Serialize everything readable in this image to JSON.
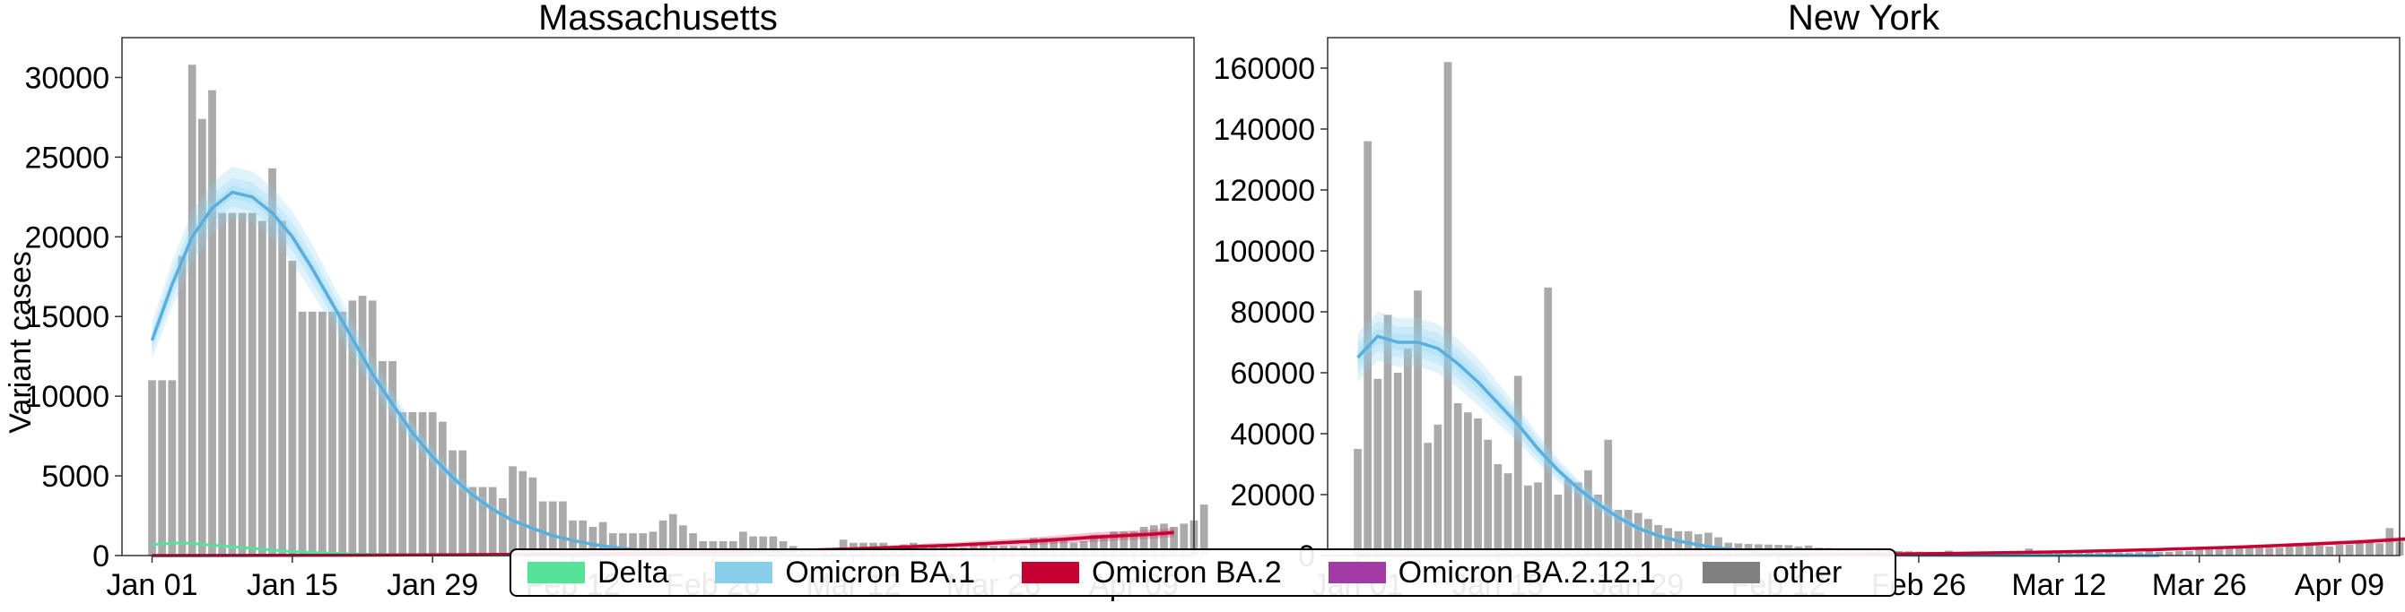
{
  "figure": {
    "ylabel": "Variant cases",
    "legend": [
      {
        "name": "Delta",
        "color": "#55e39a"
      },
      {
        "name": "Omicron BA.1",
        "color": "#87ceeb"
      },
      {
        "name": "Omicron BA.2",
        "color": "#c70033"
      },
      {
        "name": "Omicron BA.2.12.1",
        "color": "#a33ba6"
      },
      {
        "name": "other",
        "color": "#808080"
      }
    ]
  },
  "chart_data": [
    {
      "type": "bar",
      "title": "Massachusetts",
      "ylabel": "Variant cases",
      "xlabel": "",
      "x_start": "2022-01-01",
      "xlim_days": [
        -3,
        104
      ],
      "xticks": [
        {
          "day": 0,
          "label": "Jan 01"
        },
        {
          "day": 14,
          "label": "Jan 15"
        },
        {
          "day": 28,
          "label": "Jan 29"
        },
        {
          "day": 42,
          "label": "Feb 12"
        },
        {
          "day": 56,
          "label": "Feb 26"
        },
        {
          "day": 70,
          "label": "Mar 12"
        },
        {
          "day": 84,
          "label": "Mar 26"
        },
        {
          "day": 98,
          "label": "Apr 09"
        }
      ],
      "ylim": [
        0,
        32500
      ],
      "yticks": [
        0,
        5000,
        10000,
        15000,
        20000,
        25000,
        30000
      ],
      "grid": false,
      "legend_placement": "bottom-center",
      "bars_other": [
        11000,
        11000,
        11000,
        18800,
        30800,
        27400,
        29200,
        21500,
        21500,
        21500,
        21500,
        21000,
        24300,
        21000,
        18500,
        15300,
        15300,
        15300,
        15300,
        15300,
        16000,
        16300,
        16000,
        12200,
        12200,
        9000,
        9000,
        9000,
        9000,
        8400,
        6600,
        6600,
        4300,
        4300,
        4300,
        3600,
        5600,
        5300,
        4900,
        3400,
        3400,
        3400,
        2200,
        2200,
        1800,
        2100,
        1400,
        1400,
        1400,
        1400,
        1500,
        2200,
        2600,
        1900,
        1400,
        900,
        900,
        900,
        900,
        1500,
        1200,
        1200,
        1200,
        900,
        600,
        400,
        400,
        400,
        400,
        1000,
        800,
        800,
        800,
        800,
        500,
        700,
        800,
        700,
        600,
        600,
        500,
        500,
        800,
        800,
        600,
        600,
        600,
        600,
        1100,
        1100,
        1100,
        1100,
        800,
        900,
        1300,
        1300,
        1500,
        1500,
        1500,
        1800,
        1900,
        2000,
        1800,
        2000,
        2200,
        3200
      ],
      "series": [
        {
          "name": "Omicron BA.1",
          "type": "line",
          "color": "#5aaede",
          "points": [
            [
              0,
              13500
            ],
            [
              2,
              17000
            ],
            [
              4,
              20000
            ],
            [
              6,
              21800
            ],
            [
              8,
              22800
            ],
            [
              10,
              22500
            ],
            [
              12,
              21500
            ],
            [
              14,
              20000
            ],
            [
              16,
              18000
            ],
            [
              18,
              15800
            ],
            [
              20,
              13600
            ],
            [
              22,
              11400
            ],
            [
              24,
              9500
            ],
            [
              26,
              7700
            ],
            [
              28,
              6200
            ],
            [
              30,
              4900
            ],
            [
              32,
              3800
            ],
            [
              34,
              2900
            ],
            [
              36,
              2200
            ],
            [
              38,
              1700
            ],
            [
              40,
              1250
            ],
            [
              42,
              950
            ],
            [
              44,
              700
            ],
            [
              46,
              520
            ],
            [
              48,
              390
            ],
            [
              50,
              280
            ],
            [
              53,
              170
            ],
            [
              56,
              100
            ],
            [
              60,
              50
            ],
            [
              65,
              20
            ],
            [
              70,
              8
            ],
            [
              75,
              3
            ]
          ],
          "band_halfwidths": [
            400,
            900,
            1600
          ]
        },
        {
          "name": "Delta",
          "type": "line",
          "color": "#55e39a",
          "points": [
            [
              0,
              700
            ],
            [
              3,
              800
            ],
            [
              6,
              650
            ],
            [
              10,
              450
            ],
            [
              14,
              250
            ],
            [
              20,
              100
            ],
            [
              26,
              40
            ],
            [
              34,
              10
            ],
            [
              45,
              0
            ]
          ]
        },
        {
          "name": "Omicron BA.2",
          "type": "line",
          "color": "#c70033",
          "points": [
            [
              0,
              0
            ],
            [
              20,
              20
            ],
            [
              30,
              50
            ],
            [
              40,
              90
            ],
            [
              50,
              150
            ],
            [
              60,
              250
            ],
            [
              70,
              420
            ],
            [
              80,
              650
            ],
            [
              88,
              900
            ],
            [
              94,
              1150
            ],
            [
              100,
              1350
            ],
            [
              102,
              1450
            ]
          ],
          "band_halfwidths": [
            150,
            300
          ]
        }
      ]
    },
    {
      "type": "bar",
      "title": "New York",
      "ylabel": "",
      "xlabel": "",
      "x_start": "2022-01-01",
      "xlim_days": [
        -3,
        104
      ],
      "xticks": [
        {
          "day": 0,
          "label": "Jan 01"
        },
        {
          "day": 14,
          "label": "Jan 15"
        },
        {
          "day": 28,
          "label": "Jan 29"
        },
        {
          "day": 42,
          "label": "Feb 12"
        },
        {
          "day": 56,
          "label": "Feb 26"
        },
        {
          "day": 70,
          "label": "Mar 12"
        },
        {
          "day": 84,
          "label": "Mar 26"
        },
        {
          "day": 98,
          "label": "Apr 09"
        }
      ],
      "ylim": [
        0,
        170000
      ],
      "yticks": [
        0,
        20000,
        40000,
        60000,
        80000,
        100000,
        120000,
        140000,
        160000
      ],
      "grid": false,
      "legend_placement": "bottom-center",
      "bars_other": [
        35000,
        136000,
        58000,
        79000,
        60000,
        68000,
        87000,
        37000,
        43000,
        162000,
        50000,
        47000,
        45000,
        38000,
        30000,
        27000,
        59000,
        23000,
        24000,
        88000,
        20000,
        25000,
        24000,
        28000,
        20000,
        38000,
        15000,
        15000,
        14000,
        12000,
        10000,
        9000,
        8000,
        8000,
        7000,
        7500,
        6000,
        4200,
        4000,
        3800,
        3700,
        3600,
        3500,
        3400,
        3000,
        3300,
        2600,
        2500,
        2400,
        2300,
        2100,
        2000,
        1800,
        1600,
        1500,
        1400,
        1300,
        1200,
        1100,
        1600,
        1000,
        1000,
        900,
        900,
        900,
        800,
        800,
        2300,
        1200,
        1000,
        1000,
        1000,
        900,
        1000,
        900,
        1100,
        1100,
        1000,
        1100,
        2000,
        1200,
        1200,
        1500,
        1500,
        2100,
        2000,
        2500,
        2500,
        2700,
        3000,
        2800,
        2600,
        2600,
        3500,
        4000,
        3500,
        3300,
        3000,
        3500,
        3500,
        4200,
        4500,
        4000,
        9000,
        4500,
        6500
      ],
      "series": [
        {
          "name": "Omicron BA.1",
          "type": "line",
          "color": "#5aaede",
          "points": [
            [
              0,
              65000
            ],
            [
              2,
              72000
            ],
            [
              4,
              70000
            ],
            [
              6,
              70000
            ],
            [
              8,
              68000
            ],
            [
              10,
              63000
            ],
            [
              12,
              57000
            ],
            [
              14,
              50000
            ],
            [
              16,
              43000
            ],
            [
              18,
              35000
            ],
            [
              20,
              28000
            ],
            [
              22,
              22000
            ],
            [
              24,
              17000
            ],
            [
              26,
              12500
            ],
            [
              28,
              9000
            ],
            [
              30,
              6500
            ],
            [
              32,
              4800
            ],
            [
              34,
              3500
            ],
            [
              36,
              2500
            ],
            [
              38,
              1800
            ],
            [
              40,
              1300
            ],
            [
              42,
              950
            ],
            [
              45,
              600
            ],
            [
              48,
              380
            ],
            [
              52,
              200
            ],
            [
              56,
              100
            ],
            [
              62,
              40
            ],
            [
              70,
              12
            ],
            [
              80,
              3
            ]
          ],
          "band_halfwidths": [
            2500,
            5000,
            8000
          ]
        },
        {
          "name": "Delta",
          "type": "line",
          "color": "#55e39a",
          "points": [
            [
              0,
              1500
            ],
            [
              4,
              1200
            ],
            [
              10,
              600
            ],
            [
              16,
              250
            ],
            [
              24,
              80
            ],
            [
              34,
              20
            ],
            [
              45,
              0
            ]
          ]
        },
        {
          "name": "Omicron BA.2",
          "type": "line",
          "color": "#c70033",
          "points": [
            [
              0,
              0
            ],
            [
              20,
              50
            ],
            [
              30,
              120
            ],
            [
              40,
              250
            ],
            [
              50,
              450
            ],
            [
              60,
              750
            ],
            [
              70,
              1200
            ],
            [
              80,
              2000
            ],
            [
              88,
              2800
            ],
            [
              94,
              3600
            ],
            [
              100,
              4500
            ],
            [
              105,
              5500
            ]
          ],
          "band_halfwidths": [
            400,
            800
          ]
        }
      ]
    }
  ]
}
